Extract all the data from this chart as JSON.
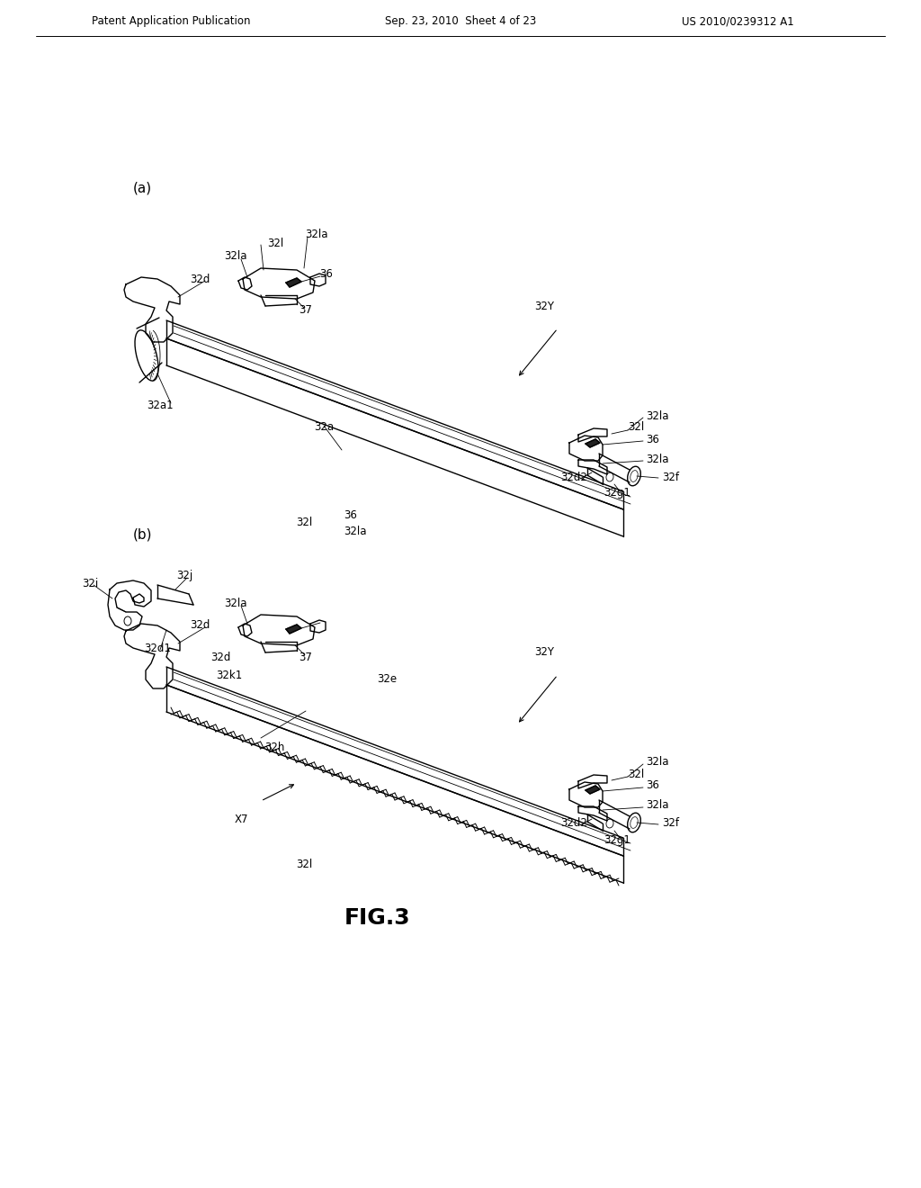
{
  "bg_color": "#ffffff",
  "header_left": "Patent Application Publication",
  "header_center": "Sep. 23, 2010  Sheet 4 of 23",
  "header_right": "US 2010/0239312 A1",
  "figure_label": "FIG.3",
  "panel_a_label": "(a)",
  "panel_b_label": "(b)",
  "line_color": "#000000",
  "lw": 1.0,
  "tlw": 0.6,
  "thw": 1.8
}
